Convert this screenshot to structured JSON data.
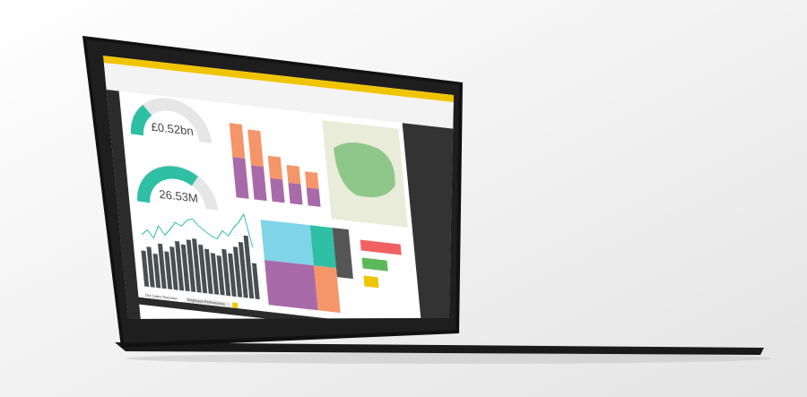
{
  "dashboard": {
    "gauges": [
      {
        "label": "£0.52bn"
      },
      {
        "label": "26.53M"
      }
    ],
    "tabs": [
      "Our Sales Overview",
      "Employee Performance"
    ]
  }
}
